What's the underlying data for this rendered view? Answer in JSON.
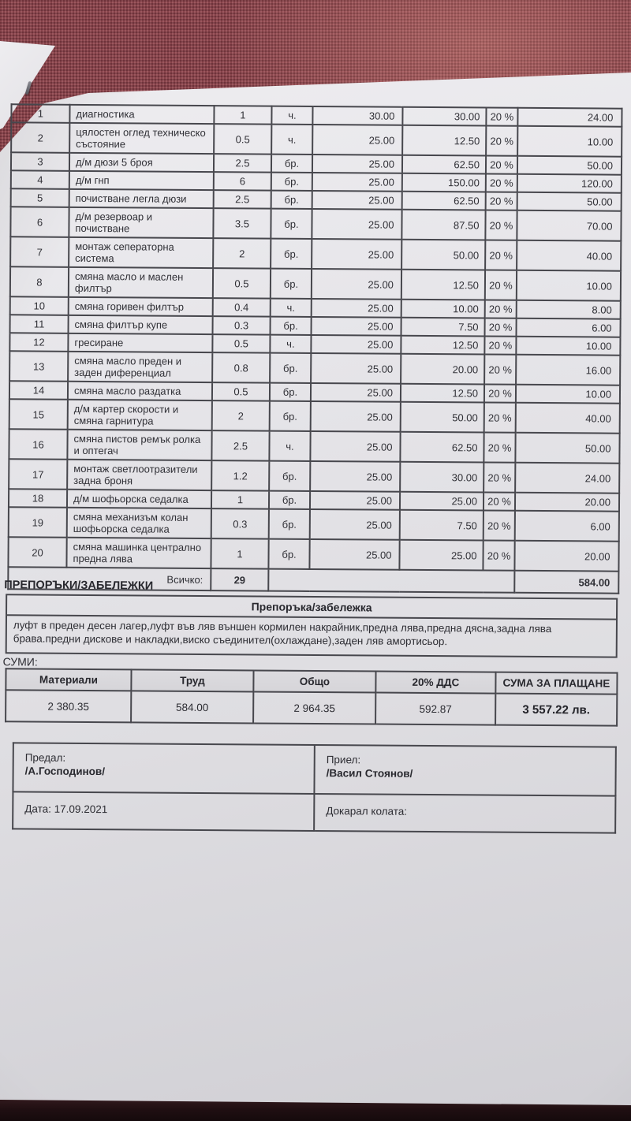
{
  "colors": {
    "fabric_red": "#8f424b",
    "paper": "#e4e3e7",
    "ink": "#2f2f35",
    "table_line": "#47474d"
  },
  "document": {
    "table": {
      "rows": [
        {
          "no": "1",
          "desc": "диагностика",
          "qty": "1",
          "unit": "ч.",
          "price": "30.00",
          "total": "30.00",
          "vat": "20 %",
          "amount": "24.00"
        },
        {
          "no": "2",
          "desc": "цялостен оглед техническо състояние",
          "qty": "0.5",
          "unit": "ч.",
          "price": "25.00",
          "total": "12.50",
          "vat": "20 %",
          "amount": "10.00"
        },
        {
          "no": "3",
          "desc": "д/м дюзи 5 броя",
          "qty": "2.5",
          "unit": "бр.",
          "price": "25.00",
          "total": "62.50",
          "vat": "20 %",
          "amount": "50.00"
        },
        {
          "no": "4",
          "desc": "д/м гнп",
          "qty": "6",
          "unit": "бр.",
          "price": "25.00",
          "total": "150.00",
          "vat": "20 %",
          "amount": "120.00"
        },
        {
          "no": "5",
          "desc": "почистване легла дюзи",
          "qty": "2.5",
          "unit": "бр.",
          "price": "25.00",
          "total": "62.50",
          "vat": "20 %",
          "amount": "50.00"
        },
        {
          "no": "6",
          "desc": "д/м резервоар и почистване",
          "qty": "3.5",
          "unit": "бр.",
          "price": "25.00",
          "total": "87.50",
          "vat": "20 %",
          "amount": "70.00"
        },
        {
          "no": "7",
          "desc": "монтаж сеператорна система",
          "qty": "2",
          "unit": "бр.",
          "price": "25.00",
          "total": "50.00",
          "vat": "20 %",
          "amount": "40.00"
        },
        {
          "no": "8",
          "desc": "смяна масло и маслен филтър",
          "qty": "0.5",
          "unit": "бр.",
          "price": "25.00",
          "total": "12.50",
          "vat": "20 %",
          "amount": "10.00"
        },
        {
          "no": "10",
          "desc": "смяна горивен филтър",
          "qty": "0.4",
          "unit": "ч.",
          "price": "25.00",
          "total": "10.00",
          "vat": "20 %",
          "amount": "8.00"
        },
        {
          "no": "11",
          "desc": "смяна филтър купе",
          "qty": "0.3",
          "unit": "бр.",
          "price": "25.00",
          "total": "7.50",
          "vat": "20 %",
          "amount": "6.00"
        },
        {
          "no": "12",
          "desc": "гресиране",
          "qty": "0.5",
          "unit": "ч.",
          "price": "25.00",
          "total": "12.50",
          "vat": "20 %",
          "amount": "10.00"
        },
        {
          "no": "13",
          "desc": "смяна масло преден и заден диференциал",
          "qty": "0.8",
          "unit": "бр.",
          "price": "25.00",
          "total": "20.00",
          "vat": "20 %",
          "amount": "16.00"
        },
        {
          "no": "14",
          "desc": "смяна масло раздатка",
          "qty": "0.5",
          "unit": "бр.",
          "price": "25.00",
          "total": "12.50",
          "vat": "20 %",
          "amount": "10.00"
        },
        {
          "no": "15",
          "desc": "д/м картер скорости и смяна гарнитура",
          "qty": "2",
          "unit": "бр.",
          "price": "25.00",
          "total": "50.00",
          "vat": "20 %",
          "amount": "40.00"
        },
        {
          "no": "16",
          "desc": "смяна пистов ремък ролка и оптегач",
          "qty": "2.5",
          "unit": "ч.",
          "price": "25.00",
          "total": "62.50",
          "vat": "20 %",
          "amount": "50.00"
        },
        {
          "no": "17",
          "desc": "монтаж светлоотразители задна броня",
          "qty": "1.2",
          "unit": "бр.",
          "price": "25.00",
          "total": "30.00",
          "vat": "20 %",
          "amount": "24.00"
        },
        {
          "no": "18",
          "desc": "д/м шофьорска седалка",
          "qty": "1",
          "unit": "бр.",
          "price": "25.00",
          "total": "25.00",
          "vat": "20 %",
          "amount": "20.00"
        },
        {
          "no": "19",
          "desc": "смяна механизъм колан шофьорска седалка",
          "qty": "0.3",
          "unit": "бр.",
          "price": "25.00",
          "total": "7.50",
          "vat": "20 %",
          "amount": "6.00"
        },
        {
          "no": "20",
          "desc": "смяна машинка централно предна лява",
          "qty": "1",
          "unit": "бр.",
          "price": "25.00",
          "total": "25.00",
          "vat": "20 %",
          "amount": "20.00"
        }
      ],
      "total_label": "Всичко:",
      "total_qty": "29",
      "total_amount": "584.00"
    },
    "notes": {
      "section_label": "ПРЕПОРЪКИ/ЗАБЕЛЕЖКИ",
      "header": "Препоръка/забележка",
      "text": "луфт в преден десен лагер,луфт във ляв външен кормилен накрайник,предна лява,предна дясна,задна лява брава.предни дискове и накладки,виско съединител(охлаждане),заден ляв амортисьор."
    },
    "sums": {
      "label": "СУМИ:",
      "headers": [
        "Материали",
        "Труд",
        "Общо",
        "20% ДДС",
        "СУМА ЗА ПЛАЩАНЕ"
      ],
      "values": [
        "2 380.35",
        "584.00",
        "2 964.35",
        "592.87",
        "3 557.22 лв."
      ]
    },
    "signature": {
      "handed_label": "Предал:",
      "handed_name": "/А.Господинов/",
      "received_label": "Приел:",
      "received_name": "/Васил Стоянов/",
      "date": "Дата: 17.09.2021",
      "brought_car_label": "Докарал колата:"
    }
  }
}
